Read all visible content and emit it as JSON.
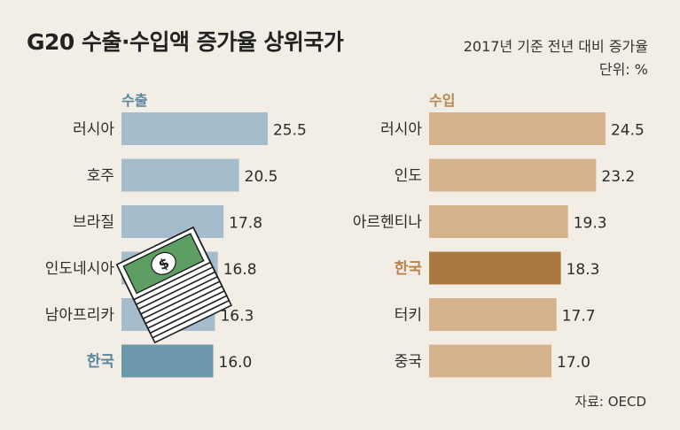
{
  "header": {
    "title": "G20 수출·수입액 증가율 상위국가",
    "subtitle_line1": "2017년 기준 전년 대비 증가율",
    "subtitle_line2": "단위: %"
  },
  "footer": {
    "source": "자료: OECD"
  },
  "colors": {
    "background": "#f2eee6",
    "export_bar": "#a4bccb",
    "export_highlight": "#6d98ab",
    "export_label": "#5a86a0",
    "import_bar": "#d7b38d",
    "import_highlight": "#a9793f",
    "import_label": "#b8854e"
  },
  "chart_data": [
    {
      "type": "bar",
      "orientation": "horizontal",
      "title": "수출",
      "categories": [
        "러시아",
        "호주",
        "브라질",
        "인도네시아",
        "남아프리카",
        "한국"
      ],
      "values": [
        25.5,
        20.5,
        17.8,
        16.8,
        16.3,
        16.0
      ],
      "highlight": "한국"
    },
    {
      "type": "bar",
      "orientation": "horizontal",
      "title": "수입",
      "categories": [
        "러시아",
        "인도",
        "아르헨티나",
        "한국",
        "터키",
        "중국"
      ],
      "values": [
        24.5,
        23.2,
        19.3,
        18.3,
        17.7,
        17.0
      ],
      "highlight": "한국"
    }
  ]
}
